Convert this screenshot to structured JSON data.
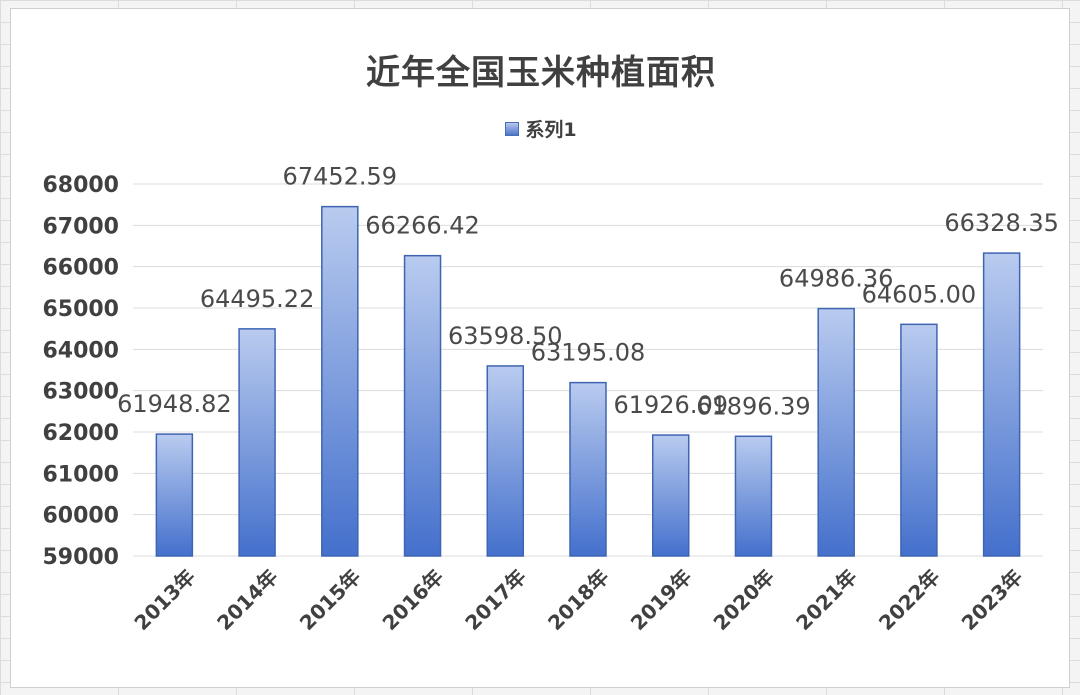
{
  "chart_data": {
    "type": "bar",
    "title": "近年全国玉米种植面积",
    "xlabel": "",
    "ylabel": "",
    "ylim": [
      59000,
      68000
    ],
    "yticks": [
      "68000",
      "67000",
      "66000",
      "65000",
      "64000",
      "63000",
      "62000",
      "61000",
      "60000",
      "59000"
    ],
    "grid": true,
    "legend_position": "top",
    "categories": [
      "2013年",
      "2014年",
      "2015年",
      "2016年",
      "2017年",
      "2018年",
      "2019年",
      "2020年",
      "2021年",
      "2022年",
      "2023年"
    ],
    "series": [
      {
        "name": "系列1",
        "values": [
          61948.82,
          64495.22,
          67452.59,
          66266.42,
          63598.5,
          63195.08,
          61926.09,
          61896.39,
          64986.36,
          64605.0,
          66328.35
        ],
        "value_labels": [
          "61948.82",
          "64495.22",
          "67452.59",
          "66266.42",
          "63598.50",
          "63195.08",
          "61926.09",
          "61896.39",
          "64986.36",
          "64605.00",
          "66328.35"
        ]
      }
    ],
    "colors": {
      "bar_top": "#b9cbef",
      "bar_bottom": "#4470cc",
      "bar_stroke": "#3f65b2",
      "grid": "#dcdcdc",
      "text": "#404040"
    }
  }
}
